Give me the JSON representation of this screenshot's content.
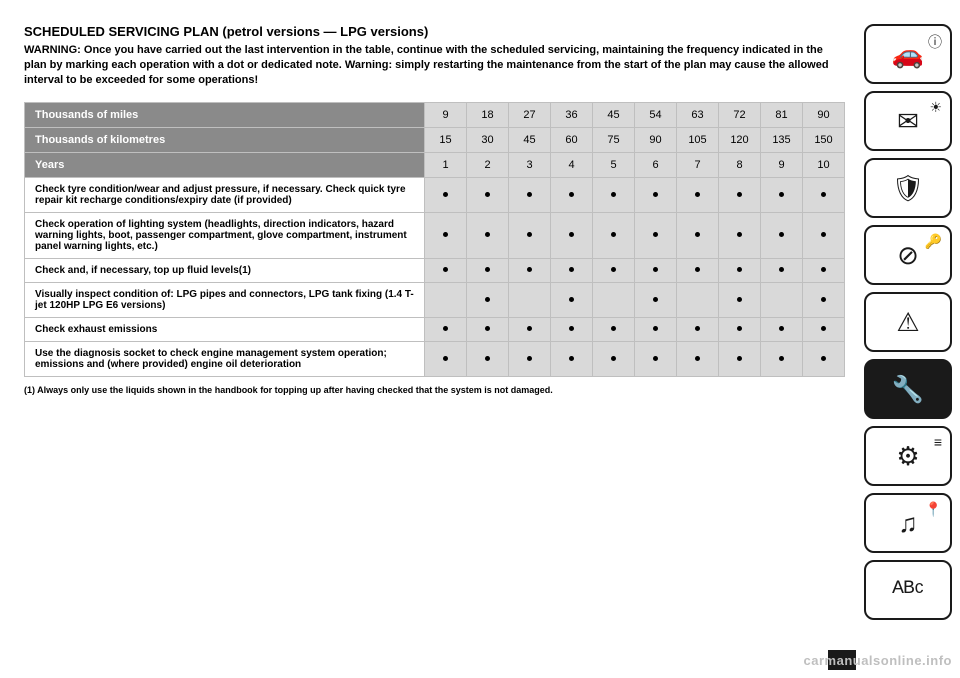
{
  "heading": "SCHEDULED SERVICING PLAN (petrol versions — LPG versions)",
  "warning": "WARNING: Once you have carried out the last intervention in the table, continue with the scheduled servicing, maintaining the frequency indicated in the plan by marking each operation with a dot or dedicated note. Warning: simply restarting the maintenance from the start of the plan may cause the allowed interval to be exceeded for some operations!",
  "table": {
    "header_bg": "#8a8a8a",
    "header_fg": "#ffffff",
    "val_bg": "#d9d9d9",
    "border_color": "#bfbfbf",
    "headers": [
      {
        "label": "Thousands of miles",
        "values": [
          "9",
          "18",
          "27",
          "36",
          "45",
          "54",
          "63",
          "72",
          "81",
          "90"
        ]
      },
      {
        "label": "Thousands of kilometres",
        "values": [
          "15",
          "30",
          "45",
          "60",
          "75",
          "90",
          "105",
          "120",
          "135",
          "150"
        ]
      },
      {
        "label": "Years",
        "values": [
          "1",
          "2",
          "3",
          "4",
          "5",
          "6",
          "7",
          "8",
          "9",
          "10"
        ]
      }
    ],
    "rows": [
      {
        "label": "Check tyre condition/wear and adjust pressure, if necessary. Check quick tyre repair kit recharge conditions/expiry date (if provided)",
        "marks": [
          true,
          true,
          true,
          true,
          true,
          true,
          true,
          true,
          true,
          true
        ]
      },
      {
        "label": "Check operation of lighting system (headlights, direction indicators, hazard warning lights, boot, passenger compartment, glove compartment, instrument panel warning lights, etc.)",
        "marks": [
          true,
          true,
          true,
          true,
          true,
          true,
          true,
          true,
          true,
          true
        ]
      },
      {
        "label": "Check and, if necessary, top up fluid levels(1)",
        "marks": [
          true,
          true,
          true,
          true,
          true,
          true,
          true,
          true,
          true,
          true
        ]
      },
      {
        "label": "Visually inspect condition of: LPG pipes and connectors, LPG tank fixing (1.4 T-jet 120HP LPG E6 versions)",
        "marks": [
          false,
          true,
          false,
          true,
          false,
          true,
          false,
          true,
          false,
          true
        ]
      },
      {
        "label": "Check exhaust emissions",
        "marks": [
          true,
          true,
          true,
          true,
          true,
          true,
          true,
          true,
          true,
          true
        ]
      },
      {
        "label": "Use the diagnosis socket to check engine management system operation; emissions and (where provided) engine oil deterioration",
        "marks": [
          true,
          true,
          true,
          true,
          true,
          true,
          true,
          true,
          true,
          true
        ]
      }
    ]
  },
  "footnote": "(1) Always only use the liquids shown in the handbook for topping up after having checked that the system is not damaged.",
  "sidebar": [
    {
      "name": "car-info-icon",
      "glyph": "🚗",
      "badge": "ⓘ",
      "active": false
    },
    {
      "name": "light-mail-icon",
      "glyph": "✉",
      "badge": "☀",
      "active": false
    },
    {
      "name": "airbag-icon",
      "glyph": "🛡",
      "badge": "",
      "active": false
    },
    {
      "name": "key-wheel-icon",
      "glyph": "⊘",
      "badge": "🔑",
      "active": false
    },
    {
      "name": "car-warn-icon",
      "glyph": "⚠",
      "badge": "",
      "active": false
    },
    {
      "name": "car-service-icon",
      "glyph": "🔧",
      "badge": "",
      "active": true
    },
    {
      "name": "settings-list-icon",
      "glyph": "⚙",
      "badge": "≡",
      "active": false
    },
    {
      "name": "media-nav-icon",
      "glyph": "♫",
      "badge": "📍",
      "active": false
    },
    {
      "name": "alpha-index-icon",
      "glyph": "ᴬᴮᶜ",
      "badge": "",
      "active": false
    }
  ],
  "watermark": "carmanualsonline.info"
}
